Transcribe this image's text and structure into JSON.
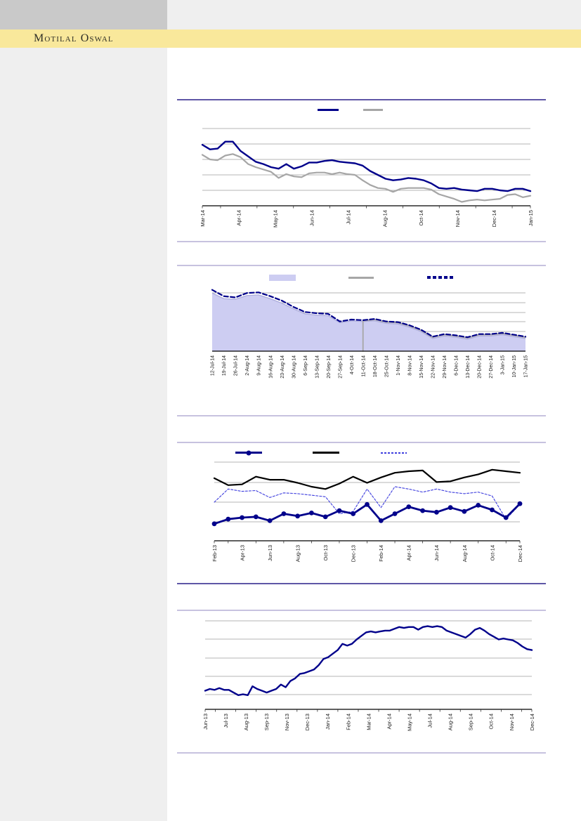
{
  "brand": {
    "logo_text": "Motilal Oswal"
  },
  "colors": {
    "band": "#F9E89B",
    "block": "#C9C9C9",
    "strip": "#EFEFEF",
    "sidebar": "#EFEFEF",
    "sepDark": "#5F57A6",
    "sepLight": "#C7C2DF",
    "navy": "#00008B",
    "gray": "#A6A6A6",
    "lavender": "#CDCDF2",
    "blue": "#3E3EDE",
    "grid": "#9C9C9C",
    "label": "#1A1A1A",
    "axis": "#000000"
  },
  "chart_data": [
    {
      "id": "chart1",
      "type": "line",
      "x_labels": [
        "Mar-14",
        "Apr-14",
        "May-14",
        "Jun-14",
        "Jul-14",
        "Aug-14",
        "Oct-14",
        "Nov-14",
        "Dec-14",
        "Jan-15"
      ],
      "gridline_color": "#9C9C9C",
      "legend": [
        {
          "kind": "line",
          "color": "#00008B"
        },
        {
          "kind": "line",
          "color": "#A6A6A6"
        }
      ],
      "series": [
        {
          "name": "gray-line",
          "color": "#A6A6A6",
          "width": 2.2,
          "values": [
            34,
            40,
            41,
            35,
            33,
            37,
            46,
            50,
            53,
            56,
            64,
            59,
            62,
            63,
            58,
            57,
            57,
            59,
            57,
            59,
            60,
            67,
            73,
            77,
            78,
            82,
            78,
            77,
            77,
            77,
            79,
            85,
            88,
            91,
            95,
            93,
            92,
            93,
            92,
            91,
            86,
            85,
            89,
            87
          ]
        },
        {
          "name": "navy-line",
          "color": "#00008B",
          "width": 2.4,
          "values": [
            21,
            27,
            26,
            17,
            17,
            29,
            36,
            43,
            46,
            50,
            52,
            46,
            52,
            49,
            44,
            44,
            42,
            41,
            43,
            44,
            45,
            48,
            55,
            60,
            65,
            67,
            66,
            64,
            65,
            67,
            71,
            77,
            78,
            77,
            79,
            80,
            81,
            78,
            78,
            80,
            81,
            78,
            78,
            81
          ]
        }
      ]
    },
    {
      "id": "chart2",
      "type": "area-line",
      "x_labels": [
        "12-Jul-14",
        "19-Jul-14",
        "26-Jul-14",
        "2-Aug-14",
        "9-Aug-14",
        "16-Aug-14",
        "23-Aug-14",
        "30-Aug-14",
        "6-Sep-14",
        "13-Sep-14",
        "20-Sep-14",
        "27-Sep-14",
        "4-Oct-14",
        "11-Oct-14",
        "18-Oct-14",
        "25-Oct-14",
        "1-Nov-14",
        "8-Nov-14",
        "15-Nov-14",
        "22-Nov-14",
        "29-Nov-14",
        "6-Dec-14",
        "13-Dec-14",
        "20-Dec-14",
        "27-Dec-14",
        "3-Jan-15",
        "10-Jan-15",
        "17-Jan-15"
      ],
      "gridline_color": "#9C9C9C",
      "legend": [
        {
          "kind": "area",
          "color": "#CDCDF2"
        },
        {
          "kind": "line",
          "color": "#A6A6A6"
        },
        {
          "kind": "dash",
          "color": "#00008B"
        }
      ],
      "series": [
        {
          "name": "lavender-area",
          "area": true,
          "fill": "#CDCDF2",
          "color": "#AEAEDC",
          "width": 1.4,
          "values": [
            8,
            17,
            18,
            12,
            11,
            17,
            24,
            33,
            41,
            43,
            44,
            55,
            52,
            53,
            52,
            56,
            57,
            62,
            69,
            80,
            76,
            78,
            81,
            76,
            76,
            74,
            77,
            80
          ]
        },
        {
          "name": "gray-line",
          "color": "#A6A6A6",
          "width": 1.8,
          "vstart": true,
          "values": [
            null,
            null,
            null,
            null,
            null,
            null,
            null,
            null,
            null,
            null,
            null,
            null,
            null,
            52,
            50,
            54,
            55,
            60,
            67,
            78,
            74,
            76,
            79,
            74,
            74,
            72,
            75,
            78
          ]
        },
        {
          "name": "navy-dashed-line",
          "color": "#00008B",
          "width": 2.2,
          "dash": "6 3.5",
          "values": [
            3,
            13,
            15,
            8,
            7,
            13,
            20,
            30,
            38,
            40,
            41,
            53,
            50,
            51,
            49,
            53,
            54,
            59,
            66,
            77,
            73,
            75,
            78,
            73,
            73,
            71,
            74,
            77
          ]
        }
      ]
    },
    {
      "id": "chart3",
      "type": "line",
      "x_labels": [
        "Feb-13",
        "Apr-13",
        "Jun-13",
        "Aug-13",
        "Oct-13",
        "Dec-13",
        "Feb-14",
        "Apr-14",
        "Jun-14",
        "Aug-14",
        "Oct-14",
        "Dec-14"
      ],
      "gridline_color": "#9C9C9C",
      "legend": [
        {
          "kind": "line-marker",
          "color": "#00008B"
        },
        {
          "kind": "line",
          "color": "#000000"
        },
        {
          "kind": "dash-fine",
          "color": "#3E3EDE"
        }
      ],
      "series": [
        {
          "name": "black-line",
          "color": "#000000",
          "width": 2.2,
          "values": [
            19,
            28,
            27,
            17,
            21,
            21,
            25,
            30,
            33,
            26,
            17,
            25,
            18,
            12,
            10,
            9,
            24,
            23,
            18,
            14,
            8,
            10,
            12
          ]
        },
        {
          "name": "blue-dashed-line",
          "color": "#3E3EDE",
          "width": 1.1,
          "dash": "3 2.2",
          "values": [
            50,
            33,
            36,
            35,
            44,
            38,
            39,
            41,
            43,
            65,
            62,
            33,
            57,
            30,
            33,
            37,
            33,
            37,
            39,
            37,
            42,
            72,
            53
          ]
        },
        {
          "name": "navy-marker-line",
          "color": "#00008B",
          "width": 2.8,
          "marker": true,
          "marker_r": 3.4,
          "values": [
            78,
            72,
            70,
            69,
            74,
            65,
            68,
            64,
            69,
            61,
            65,
            53,
            74,
            65,
            56,
            61,
            63,
            57,
            62,
            54,
            60,
            70,
            52
          ]
        }
      ]
    },
    {
      "id": "chart4",
      "type": "line",
      "x_labels": [
        "Jun-13",
        "Jul-13",
        "Aug-13",
        "Sep-13",
        "Nov-13",
        "Dec-13",
        "Jan-14",
        "Feb-14",
        "Mar-14",
        "Apr-14",
        "May-14",
        "Jul-14",
        "Aug-14",
        "Sep-14",
        "Oct-14",
        "Nov-14",
        "Dec-14"
      ],
      "gridline_color": "#9C9C9C",
      "legend": [],
      "series": [
        {
          "name": "navy-line",
          "color": "#00008B",
          "width": 2.4,
          "values": [
            79,
            77,
            78,
            76,
            78,
            78,
            81,
            84,
            83,
            84,
            74,
            77,
            79,
            81,
            79,
            77,
            72,
            75,
            68,
            65,
            60,
            59,
            57,
            55,
            50,
            43,
            41,
            37,
            33,
            26,
            28,
            26,
            21,
            17,
            13,
            12,
            13,
            12,
            11,
            11,
            9,
            7,
            8,
            7,
            7,
            10,
            7,
            6,
            7,
            6,
            7,
            11,
            13,
            15,
            17,
            19,
            15,
            10,
            8,
            11,
            15,
            18,
            21,
            20,
            21,
            22,
            25,
            29,
            32,
            33
          ]
        }
      ]
    }
  ]
}
